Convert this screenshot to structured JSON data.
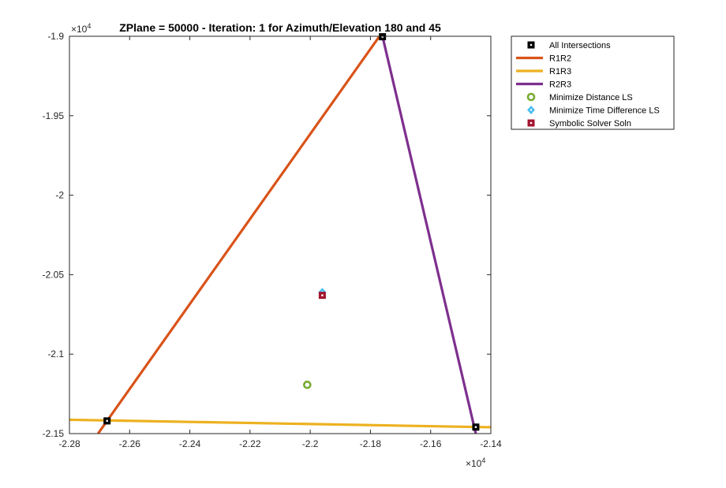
{
  "chart_data": {
    "type": "line",
    "title": "ZPlane = 50000 - Iteration: 1 for Azimuth/Elevation 180 and 45",
    "xlabel": "",
    "ylabel": "",
    "x_exponent_label": "×10",
    "x_exponent": "4",
    "y_exponent_label": "×10",
    "y_exponent": "4",
    "xlim": [
      -2.28,
      -2.14
    ],
    "ylim": [
      -2.15,
      -1.9
    ],
    "x_ticks": [
      {
        "value": -2.28,
        "label": "-2.28"
      },
      {
        "value": -2.26,
        "label": "-2.26"
      },
      {
        "value": -2.24,
        "label": "-2.24"
      },
      {
        "value": -2.22,
        "label": "-2.22"
      },
      {
        "value": -2.2,
        "label": "-2.2"
      },
      {
        "value": -2.18,
        "label": "-2.18"
      },
      {
        "value": -2.16,
        "label": "-2.16"
      },
      {
        "value": -2.14,
        "label": "-2.14"
      }
    ],
    "y_ticks": [
      {
        "value": -1.9,
        "label": "-1.9"
      },
      {
        "value": -1.95,
        "label": "-1.95"
      },
      {
        "value": -2.0,
        "label": "-2"
      },
      {
        "value": -2.05,
        "label": "-2.05"
      },
      {
        "value": -2.1,
        "label": "-2.1"
      },
      {
        "value": -2.15,
        "label": "-2.15"
      }
    ],
    "grid": false,
    "legend_placement": "outside-top-right",
    "series": [
      {
        "name": "R1R2",
        "kind": "line",
        "color": "#D95319",
        "points": [
          [
            -2.2705,
            -2.15
          ],
          [
            -2.177,
            -1.9
          ]
        ]
      },
      {
        "name": "R1R3",
        "kind": "line",
        "color": "#EDB120",
        "points": [
          [
            -2.28,
            -2.1413
          ],
          [
            -2.14,
            -2.146
          ]
        ]
      },
      {
        "name": "R2R3",
        "kind": "line",
        "color": "#7E2F8E",
        "points": [
          [
            -2.176,
            -1.9
          ],
          [
            -2.145,
            -2.15
          ]
        ]
      },
      {
        "name": "All Intersections",
        "kind": "marker",
        "marker": "square",
        "color": "#000000",
        "points": [
          [
            -2.2675,
            -2.142
          ],
          [
            -2.176,
            -1.9003
          ],
          [
            -2.145,
            -2.1459
          ]
        ]
      },
      {
        "name": "Minimize Distance LS",
        "kind": "marker",
        "marker": "circle",
        "color": "#77AC30",
        "points": [
          [
            -2.201,
            -2.1193
          ]
        ]
      },
      {
        "name": "Minimize Time Difference LS",
        "kind": "marker",
        "marker": "diamond",
        "color": "#4DBEEE",
        "points": [
          [
            -2.196,
            -2.061
          ]
        ]
      },
      {
        "name": "Symbolic Solver Soln",
        "kind": "marker",
        "marker": "square",
        "color": "#A2142F",
        "points": [
          [
            -2.196,
            -2.063
          ]
        ]
      }
    ]
  }
}
